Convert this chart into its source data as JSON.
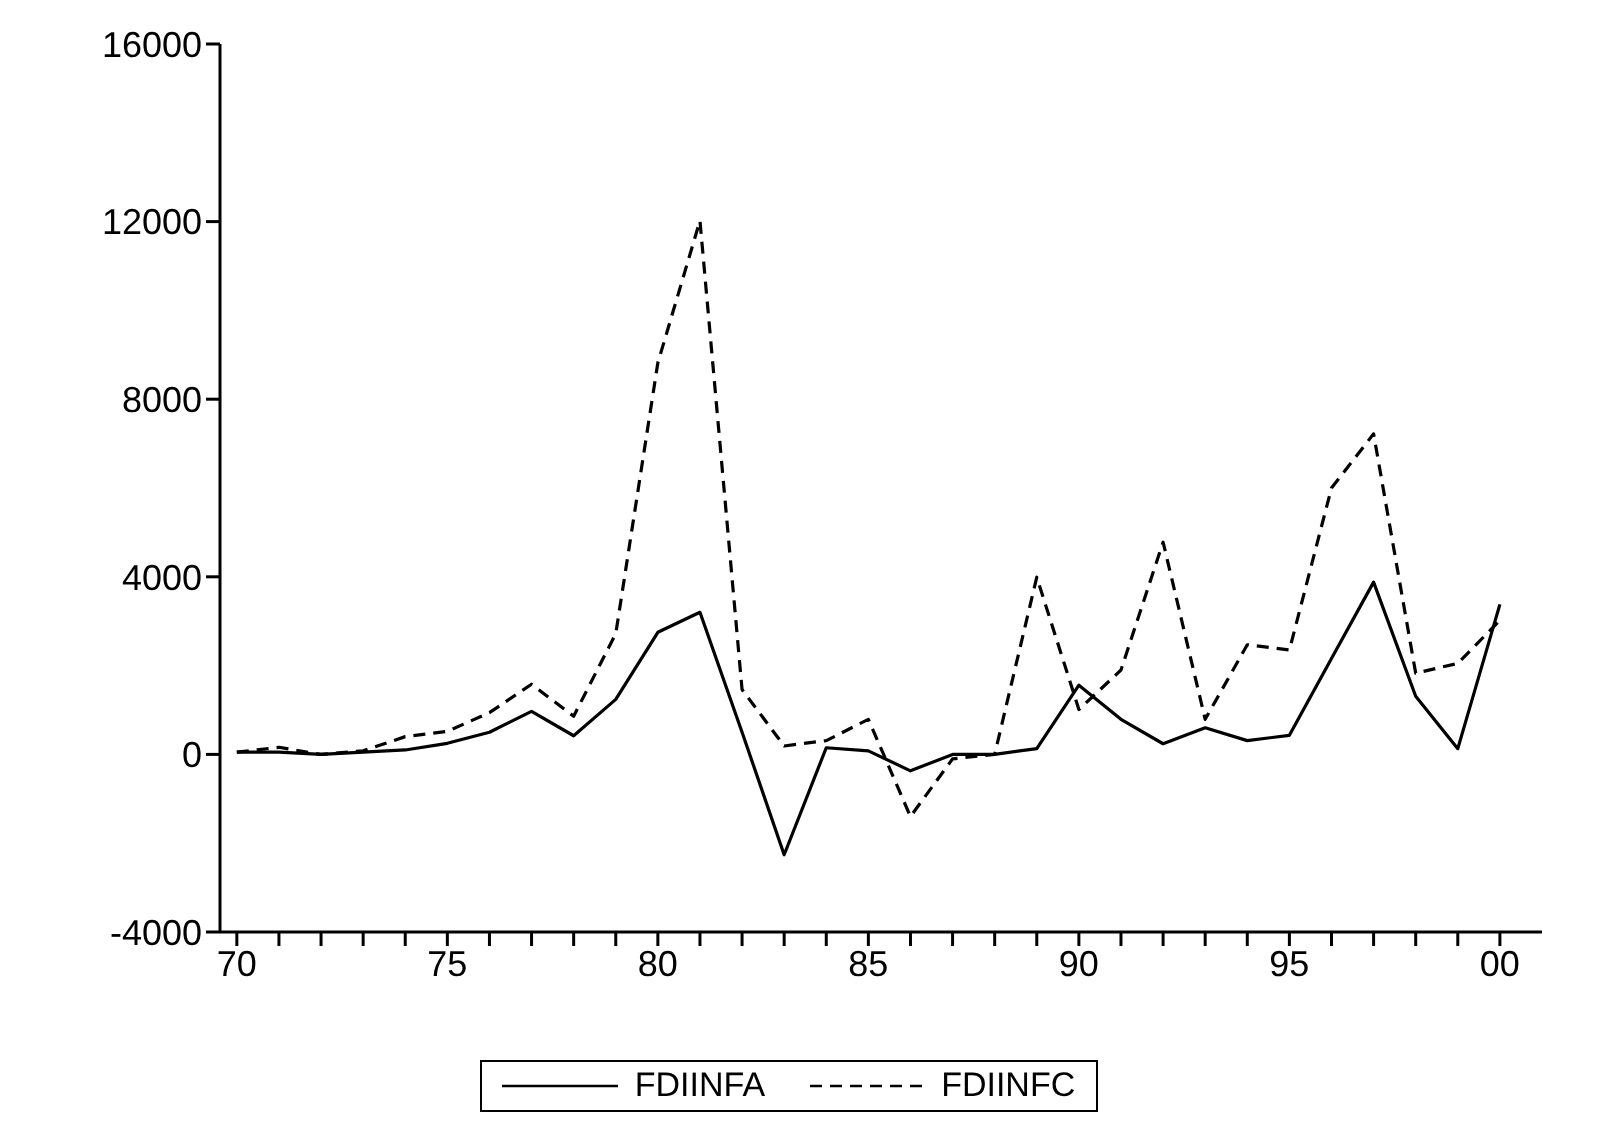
{
  "chart_data": {
    "type": "line",
    "x": [
      1970,
      1971,
      1972,
      1973,
      1974,
      1975,
      1976,
      1977,
      1978,
      1979,
      1980,
      1981,
      1982,
      1983,
      1984,
      1985,
      1986,
      1987,
      1988,
      1989,
      1990,
      1991,
      1992,
      1993,
      1994,
      1995,
      1996,
      1997,
      1998,
      1999,
      2000
    ],
    "series": [
      {
        "name": "FDIINFA",
        "color": "#000000",
        "line_style": "solid",
        "values": [
          50,
          50,
          0,
          50,
          100,
          250,
          500,
          970,
          420,
          1240,
          2750,
          3200,
          500,
          -2260,
          150,
          80,
          -370,
          0,
          0,
          130,
          1560,
          790,
          240,
          600,
          310,
          430,
          2160,
          3880,
          1310,
          130,
          3380
        ]
      },
      {
        "name": "FDIINFC",
        "color": "#000000",
        "line_style": "dashed",
        "values": [
          50,
          160,
          0,
          80,
          400,
          520,
          940,
          1580,
          860,
          2720,
          8820,
          12020,
          1460,
          190,
          310,
          790,
          -1400,
          -100,
          0,
          3990,
          1010,
          1900,
          4780,
          790,
          2470,
          2350,
          6000,
          7220,
          1830,
          2050,
          3020
        ]
      }
    ],
    "xlim": [
      1969.6,
      2001
    ],
    "xticks": [
      {
        "value": 1970,
        "label": "70"
      },
      {
        "value": 1971,
        "label": null
      },
      {
        "value": 1972,
        "label": null
      },
      {
        "value": 1973,
        "label": null
      },
      {
        "value": 1974,
        "label": null
      },
      {
        "value": 1975,
        "label": "75"
      },
      {
        "value": 1976,
        "label": null
      },
      {
        "value": 1977,
        "label": null
      },
      {
        "value": 1978,
        "label": null
      },
      {
        "value": 1979,
        "label": null
      },
      {
        "value": 1980,
        "label": "80"
      },
      {
        "value": 1981,
        "label": null
      },
      {
        "value": 1982,
        "label": null
      },
      {
        "value": 1983,
        "label": null
      },
      {
        "value": 1984,
        "label": null
      },
      {
        "value": 1985,
        "label": "85"
      },
      {
        "value": 1986,
        "label": null
      },
      {
        "value": 1987,
        "label": null
      },
      {
        "value": 1988,
        "label": null
      },
      {
        "value": 1989,
        "label": null
      },
      {
        "value": 1990,
        "label": "90"
      },
      {
        "value": 1991,
        "label": null
      },
      {
        "value": 1992,
        "label": null
      },
      {
        "value": 1993,
        "label": null
      },
      {
        "value": 1994,
        "label": null
      },
      {
        "value": 1995,
        "label": "95"
      },
      {
        "value": 1996,
        "label": null
      },
      {
        "value": 1997,
        "label": null
      },
      {
        "value": 1998,
        "label": null
      },
      {
        "value": 1999,
        "label": null
      },
      {
        "value": 2000,
        "label": "00"
      }
    ],
    "ylim": [
      -4000,
      16000
    ],
    "yticks": [
      -4000,
      0,
      4000,
      8000,
      12000,
      16000
    ],
    "grid": false,
    "legend": "bottom",
    "marker": "none"
  }
}
